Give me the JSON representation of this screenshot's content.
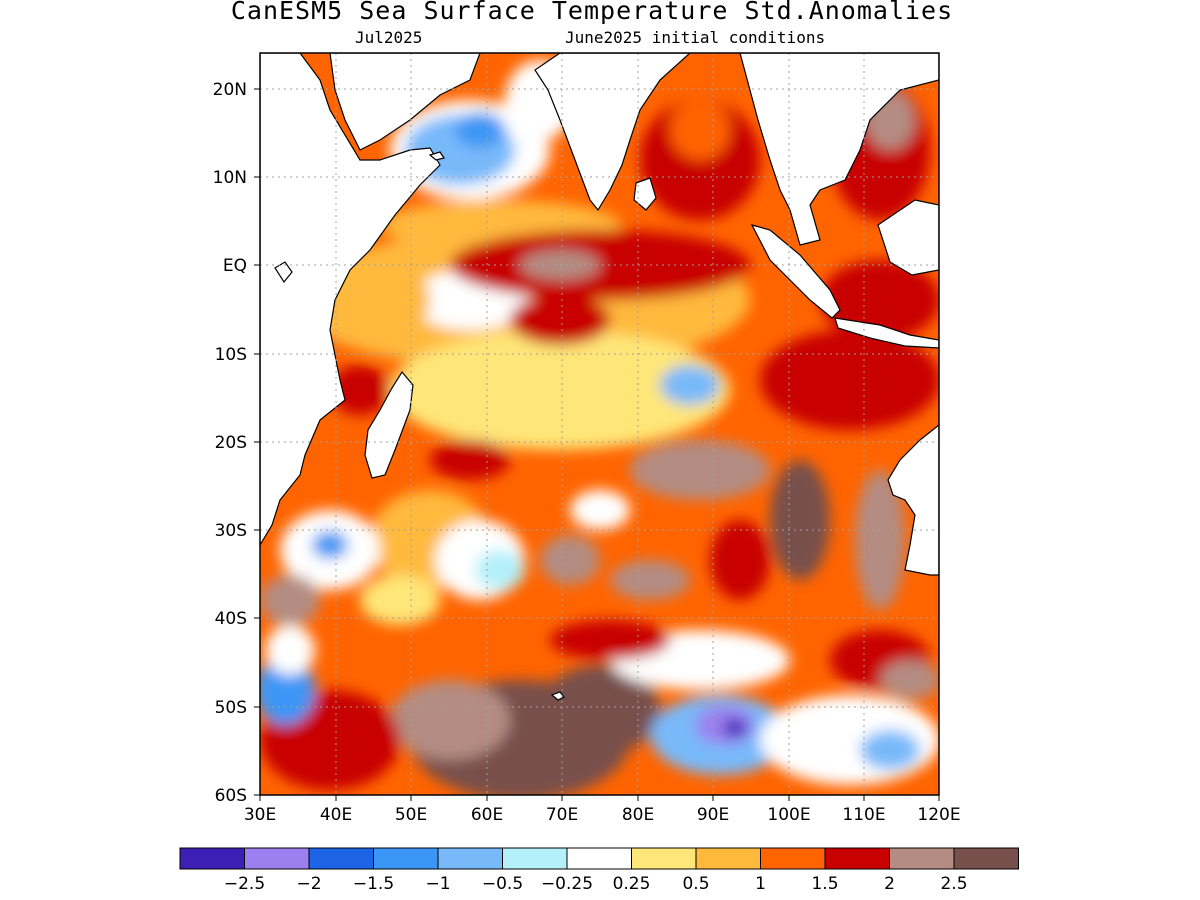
{
  "title": "CanESM5 Sea Surface Temperature Std.Anomalies",
  "subtitle_left": "Jul2025",
  "subtitle_right": "June2025 initial conditions",
  "map": {
    "lon_ticks": [
      "30E",
      "40E",
      "50E",
      "60E",
      "70E",
      "80E",
      "90E",
      "100E",
      "110E",
      "120E"
    ],
    "lat_ticks": [
      "20N",
      "10N",
      "EQ",
      "10S",
      "20S",
      "30S",
      "40S",
      "50S",
      "60S"
    ],
    "lon_range": [
      30,
      120
    ],
    "lat_range": [
      -60,
      24
    ],
    "land_color": "#ffffff",
    "coastline_color": "#000000"
  },
  "colorbar": {
    "colors": [
      "#3c1fb4",
      "#9c80f0",
      "#1e64e6",
      "#3c96f5",
      "#78b9fa",
      "#b4f0fa",
      "#ffffff",
      "#ffe678",
      "#ffb93c",
      "#ff6400",
      "#c80000",
      "#b48c82",
      "#78504b"
    ],
    "labels": [
      "−2.5",
      "−2",
      "−1.5",
      "−1",
      "−0.5",
      "−0.25",
      "0.25",
      "0.5",
      "1",
      "1.5",
      "2",
      "2.5"
    ]
  }
}
